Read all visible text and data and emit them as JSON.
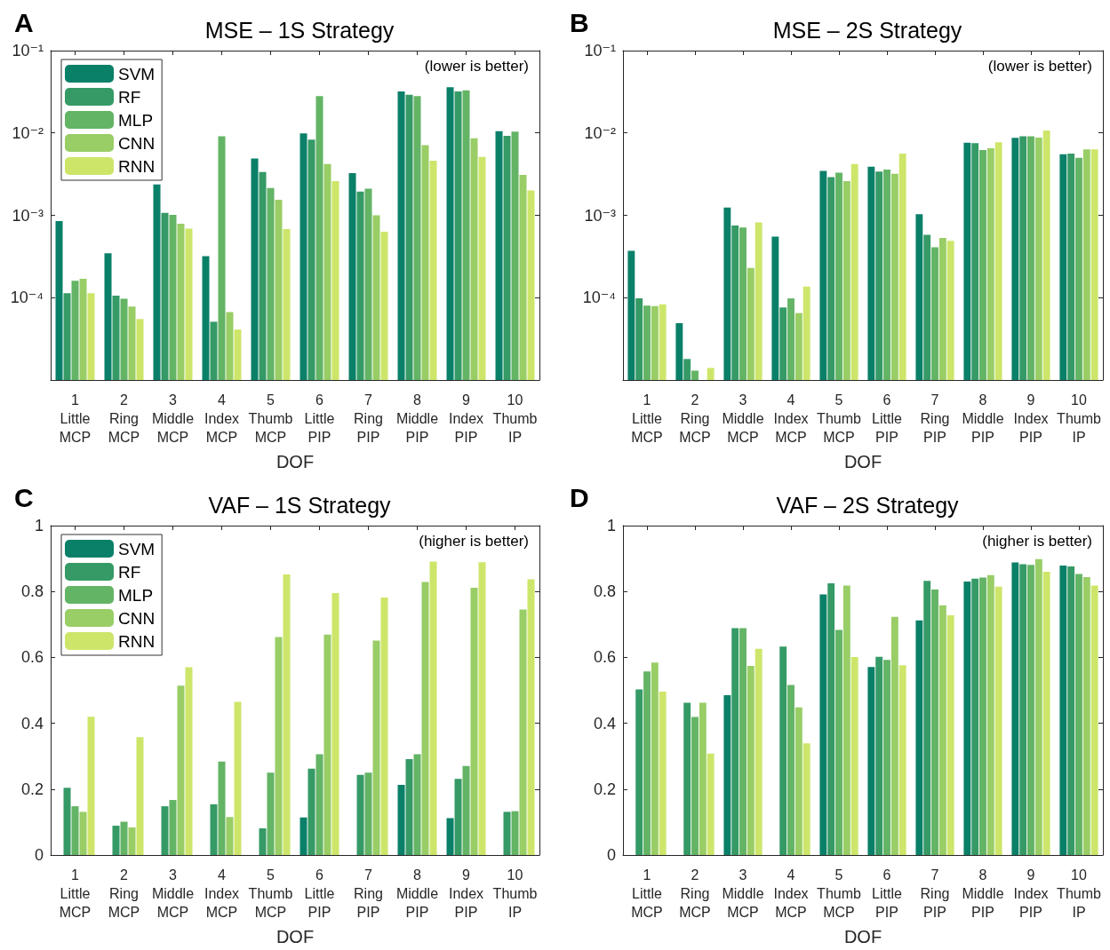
{
  "chart_data": [
    {
      "type": "bar",
      "title": "MSE – 1S Strategy",
      "xlabel": "DOF",
      "annotations": [
        "A",
        "(lower is better)"
      ],
      "categories": [
        "1\nLittle\nMCP",
        "2\nRing\nMCP",
        "3\nMiddle\nMCP",
        "4\nIndex\nMCP",
        "5\nThumb\nMCP",
        "6\nLittle\nPIP",
        "7\nRing\nPIP",
        "8\nMiddle\nPIP",
        "9\nIndex\nPIP",
        "10\nThumb\nIP"
      ],
      "log": true,
      "ylim": [
        1e-05,
        0.1
      ],
      "yticks": [
        {
          "value": 1e-05,
          "label": null
        },
        {
          "value": 0.0001,
          "label": "10⁻⁴"
        },
        {
          "value": 0.001,
          "label": "10⁻³"
        },
        {
          "value": 0.01,
          "label": "10⁻²"
        },
        {
          "value": 0.1,
          "label": "10⁻¹"
        }
      ],
      "grid": false,
      "legend": "top left",
      "series": [
        {
          "name": "SVM",
          "color": "#0a8069",
          "values": [
            0.00085,
            0.000345,
            0.00237,
            0.00032,
            0.0049,
            0.0099,
            0.00325,
            0.032,
            0.036,
            0.0105
          ]
        },
        {
          "name": "RF",
          "color": "#359a66",
          "values": [
            0.000113,
            0.000106,
            0.00107,
            5.1e-05,
            0.00335,
            0.0083,
            0.00194,
            0.029,
            0.032,
            0.0092
          ]
        },
        {
          "name": "MLP",
          "color": "#63b465",
          "values": [
            0.00016,
            9.7e-05,
            0.00101,
            0.0091,
            0.00215,
            0.028,
            0.0021,
            0.028,
            0.033,
            0.0104
          ]
        },
        {
          "name": "CNN",
          "color": "#99cd66",
          "values": [
            0.00017,
            7.8e-05,
            0.00079,
            6.7e-05,
            0.00154,
            0.0042,
            0.001,
            0.0071,
            0.0086,
            0.0031
          ]
        },
        {
          "name": "RNN",
          "color": "#cde66a",
          "values": [
            0.000113,
            5.5e-05,
            0.00069,
            4.1e-05,
            0.00068,
            0.0026,
            0.00063,
            0.0046,
            0.0051,
            0.002
          ]
        }
      ]
    },
    {
      "type": "bar",
      "title": "MSE – 2S Strategy",
      "xlabel": "DOF",
      "annotations": [
        "B",
        "(lower is better)"
      ],
      "categories": [
        "1\nLittle\nMCP",
        "2\nRing\nMCP",
        "3\nMiddle\nMCP",
        "4\nIndex\nMCP",
        "5\nThumb\nMCP",
        "6\nLittle\nPIP",
        "7\nRing\nPIP",
        "8\nMiddle\nPIP",
        "9\nIndex\nPIP",
        "10\nThumb\nIP"
      ],
      "log": true,
      "ylim": [
        1e-05,
        0.1
      ],
      "yticks": [
        {
          "value": 1e-05,
          "label": null
        },
        {
          "value": 0.0001,
          "label": "10⁻⁴"
        },
        {
          "value": 0.001,
          "label": "10⁻³"
        },
        {
          "value": 0.01,
          "label": "10⁻²"
        },
        {
          "value": 0.1,
          "label": "10⁻¹"
        }
      ],
      "grid": false,
      "legend": false,
      "series": [
        {
          "color": "#0a8069",
          "values": [
            0.00037,
            4.9e-05,
            0.00124,
            0.00055,
            0.00345,
            0.0039,
            0.00103,
            0.0076,
            0.0087,
            0.0055
          ]
        },
        {
          "color": "#359a66",
          "values": [
            9.8e-05,
            1.8e-05,
            0.00075,
            7.6e-05,
            0.0029,
            0.0034,
            0.00058,
            0.0075,
            0.0091,
            0.0056
          ]
        },
        {
          "color": "#63b465",
          "values": [
            8e-05,
            1.3e-05,
            0.00071,
            9.8e-05,
            0.0033,
            0.0036,
            0.00041,
            0.0062,
            0.0091,
            0.005
          ]
        },
        {
          "color": "#99cd66",
          "values": [
            7.9e-05,
            null,
            0.00023,
            6.5e-05,
            0.0026,
            0.0032,
            0.00053,
            0.0065,
            0.0088,
            0.0063
          ]
        },
        {
          "color": "#cde66a",
          "values": [
            8.3e-05,
            1.4e-05,
            0.00082,
            0.000136,
            0.0042,
            0.0056,
            0.00049,
            0.0077,
            0.0107,
            0.0063
          ]
        }
      ]
    },
    {
      "type": "bar",
      "title": "VAF – 1S Strategy",
      "xlabel": "DOF",
      "annotations": [
        "C",
        "(higher is better)"
      ],
      "categories": [
        "1\nLittle\nMCP",
        "2\nRing\nMCP",
        "3\nMiddle\nMCP",
        "4\nIndex\nMCP",
        "5\nThumb\nMCP",
        "6\nLittle\nPIP",
        "7\nRing\nPIP",
        "8\nMiddle\nPIP",
        "9\nIndex\nPIP",
        "10\nThumb\nIP"
      ],
      "ylim": [
        0,
        1
      ],
      "yticks": [
        0,
        0.2,
        0.4,
        0.6,
        0.8,
        1
      ],
      "grid": false,
      "legend": "top left",
      "series": [
        {
          "name": "SVM",
          "color": "#0a8069",
          "values": [
            null,
            null,
            null,
            null,
            null,
            0.114,
            null,
            0.213,
            0.112,
            null
          ]
        },
        {
          "name": "RF",
          "color": "#359a66",
          "values": [
            0.204,
            0.089,
            0.148,
            0.154,
            0.081,
            0.262,
            0.243,
            0.291,
            0.231,
            0.131
          ]
        },
        {
          "name": "MLP",
          "color": "#63b465",
          "values": [
            0.148,
            0.101,
            0.167,
            0.284,
            0.25,
            0.306,
            0.25,
            0.306,
            0.27,
            0.133
          ]
        },
        {
          "name": "CNN",
          "color": "#99cd66",
          "values": [
            0.131,
            0.084,
            0.514,
            0.115,
            0.662,
            0.669,
            0.651,
            0.829,
            0.811,
            0.745
          ]
        },
        {
          "name": "RNN",
          "color": "#cde66a",
          "values": [
            0.42,
            0.358,
            0.57,
            0.465,
            0.852,
            0.795,
            0.782,
            0.891,
            0.889,
            0.837
          ]
        }
      ]
    },
    {
      "type": "bar",
      "title": "VAF – 2S Strategy",
      "xlabel": "DOF",
      "annotations": [
        "D",
        "(higher is better)"
      ],
      "categories": [
        "1\nLittle\nMCP",
        "2\nRing\nMCP",
        "3\nMiddle\nMCP",
        "4\nIndex\nMCP",
        "5\nThumb\nMCP",
        "6\nLittle\nPIP",
        "7\nRing\nPIP",
        "8\nMiddle\nPIP",
        "9\nIndex\nPIP",
        "10\nThumb\nIP"
      ],
      "ylim": [
        0,
        1
      ],
      "yticks": [
        0,
        0.2,
        0.4,
        0.6,
        0.8,
        1
      ],
      "grid": false,
      "legend": false,
      "series": [
        {
          "color": "#0a8069",
          "values": [
            null,
            null,
            0.485,
            null,
            0.791,
            0.571,
            0.712,
            0.83,
            0.888,
            0.879
          ]
        },
        {
          "color": "#359a66",
          "values": [
            0.503,
            0.462,
            0.689,
            0.633,
            0.825,
            0.602,
            0.832,
            0.839,
            0.883,
            0.876
          ]
        },
        {
          "color": "#63b465",
          "values": [
            0.557,
            0.419,
            0.689,
            0.516,
            0.683,
            0.592,
            0.806,
            0.842,
            0.881,
            0.853
          ]
        },
        {
          "color": "#99cd66",
          "values": [
            0.584,
            0.462,
            0.574,
            0.448,
            0.818,
            0.723,
            0.758,
            0.85,
            0.898,
            0.844
          ]
        },
        {
          "color": "#cde66a",
          "values": [
            0.496,
            0.308,
            0.626,
            0.339,
            0.601,
            0.576,
            0.728,
            0.815,
            0.86,
            0.818
          ]
        }
      ]
    }
  ]
}
